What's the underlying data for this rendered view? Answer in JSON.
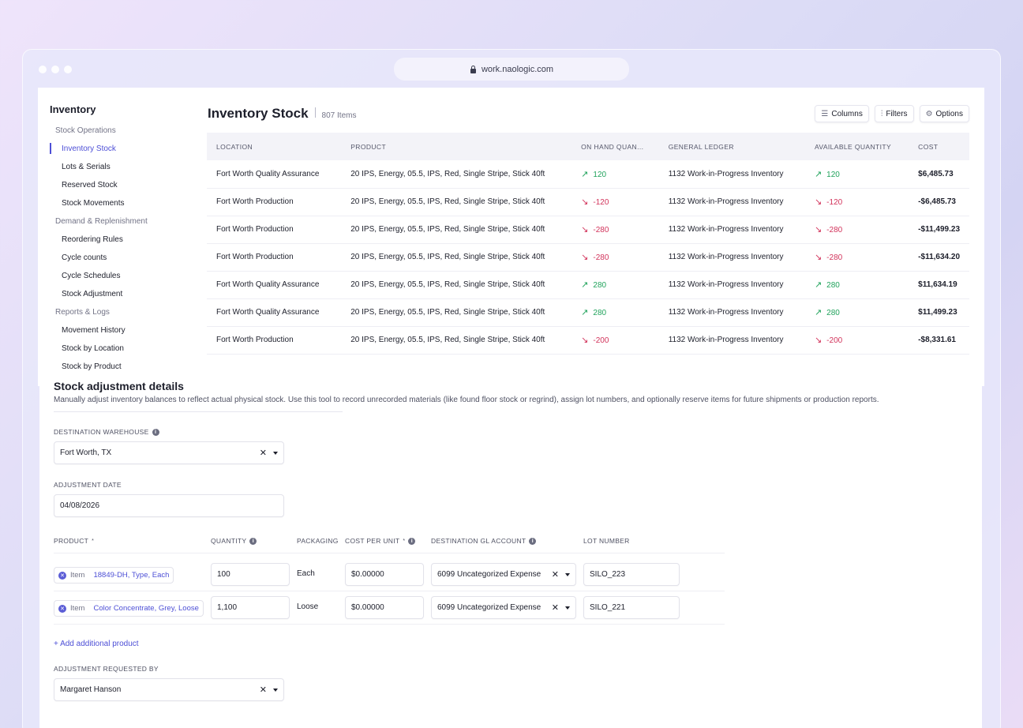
{
  "browser": {
    "url": "work.naologic.com"
  },
  "sidebar": {
    "title": "Inventory",
    "groups": [
      {
        "label": "Stock Operations",
        "items": [
          "Inventory Stock",
          "Lots & Serials",
          "Reserved Stock",
          "Stock Movements"
        ]
      },
      {
        "label": "Demand & Replenishment",
        "items": [
          "Reordering Rules",
          "Cycle counts",
          "Cycle Schedules",
          "Stock Adjustment"
        ]
      },
      {
        "label": "Reports & Logs",
        "items": [
          "Movement History",
          "Stock by Location",
          "Stock by Product"
        ]
      }
    ]
  },
  "header": {
    "title": "Inventory Stock",
    "count": "807 Items",
    "columns_label": "Columns",
    "filters_label": "Filters",
    "options_label": "Options"
  },
  "table": {
    "columns": [
      "LOCATION",
      "PRODUCT",
      "ON HAND QUAN...",
      "GENERAL LEDGER",
      "AVAILABLE QUANTITY",
      "COST"
    ],
    "rows": [
      {
        "location": "Fort Worth Quality Assurance",
        "product": "20 IPS, Energy, 05.5, IPS, Red, Single Stripe, Stick 40ft",
        "on_hand": "120",
        "on_hand_dir": "up",
        "ledger": "1132 Work-in-Progress Inventory",
        "available": "120",
        "available_dir": "up",
        "cost": "$6,485.73"
      },
      {
        "location": "Fort Worth Production",
        "product": "20 IPS, Energy, 05.5, IPS, Red, Single Stripe, Stick 40ft",
        "on_hand": "-120",
        "on_hand_dir": "down",
        "ledger": "1132 Work-in-Progress Inventory",
        "available": "-120",
        "available_dir": "down",
        "cost": "-$6,485.73"
      },
      {
        "location": "Fort Worth Production",
        "product": "20 IPS, Energy, 05.5, IPS, Red, Single Stripe, Stick 40ft",
        "on_hand": "-280",
        "on_hand_dir": "down",
        "ledger": "1132 Work-in-Progress Inventory",
        "available": "-280",
        "available_dir": "down",
        "cost": "-$11,499.23"
      },
      {
        "location": "Fort Worth Production",
        "product": "20 IPS, Energy, 05.5, IPS, Red, Single Stripe, Stick 40ft",
        "on_hand": "-280",
        "on_hand_dir": "down",
        "ledger": "1132 Work-in-Progress Inventory",
        "available": "-280",
        "available_dir": "down",
        "cost": "-$11,634.20"
      },
      {
        "location": "Fort Worth Quality Assurance",
        "product": "20 IPS, Energy, 05.5, IPS, Red, Single Stripe, Stick 40ft",
        "on_hand": "280",
        "on_hand_dir": "up",
        "ledger": "1132 Work-in-Progress Inventory",
        "available": "280",
        "available_dir": "up",
        "cost": "$11,634.19"
      },
      {
        "location": "Fort Worth Quality Assurance",
        "product": "20 IPS, Energy, 05.5, IPS, Red, Single Stripe, Stick 40ft",
        "on_hand": "280",
        "on_hand_dir": "up",
        "ledger": "1132 Work-in-Progress Inventory",
        "available": "280",
        "available_dir": "up",
        "cost": "$11,499.23"
      },
      {
        "location": "Fort Worth Production",
        "product": "20 IPS, Energy, 05.5, IPS, Red, Single Stripe, Stick 40ft",
        "on_hand": "-200",
        "on_hand_dir": "down",
        "ledger": "1132 Work-in-Progress Inventory",
        "available": "-200",
        "available_dir": "down",
        "cost": "-$8,331.61"
      }
    ]
  },
  "form": {
    "title": "Stock adjustment details",
    "description": "Manually adjust inventory balances to reflect actual physical stock. Use this tool to record unrecorded materials (like found floor stock or regrind), assign lot numbers, and optionally reserve items for future shipments or production reports.",
    "warehouse_label": "DESTINATION WAREHOUSE",
    "warehouse_value": "Fort Worth, TX",
    "date_label": "ADJUSTMENT DATE",
    "date_value": "04/08/2026",
    "product_headers": {
      "product": "PRODUCT",
      "quantity": "QUANTITY",
      "packaging": "PACKAGING",
      "cost": "COST PER UNIT",
      "gl": "DESTINATION GL ACCOUNT",
      "lot": "LOT NUMBER",
      "required_mark": "*"
    },
    "products": [
      {
        "type": "Item",
        "name": "18849-DH, Type, Each",
        "quantity": "100",
        "packaging": "Each",
        "cost": "$0.00000",
        "gl": "6099 Uncategorized Expense",
        "lot": "SILO_223"
      },
      {
        "type": "Item",
        "name": "Color Concentrate, Grey, Loose",
        "quantity": "1,100",
        "packaging": "Loose",
        "cost": "$0.00000",
        "gl": "6099 Uncategorized Expense",
        "lot": "SILO_221"
      }
    ],
    "add_product_label": "+ Add additional product",
    "requested_label": "ADJUSTMENT REQUESTED BY",
    "requested_value": "Margaret Hanson"
  },
  "colors": {
    "accent": "#4d4fd6",
    "positive": "#21a35c",
    "negative": "#d2335b"
  },
  "icons": {
    "columns": "list-icon",
    "filters": "sliders-icon",
    "options": "gear-icon",
    "up": "arrow-up-right-icon",
    "down": "arrow-down-right-icon"
  }
}
